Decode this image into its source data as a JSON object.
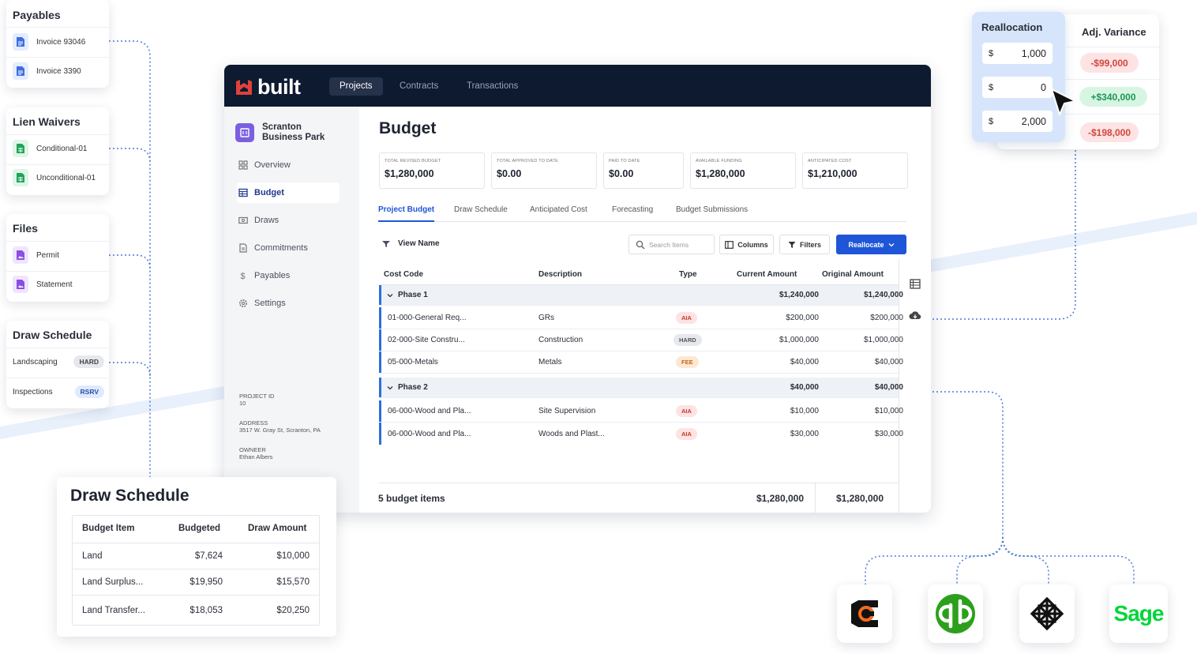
{
  "left_cards": {
    "payables": {
      "title": "Payables",
      "items": [
        "Invoice 93046",
        "Invoice 3390"
      ]
    },
    "lien_waivers": {
      "title": "Lien Waivers",
      "items": [
        "Conditional-01",
        "Unconditional-01"
      ]
    },
    "files": {
      "title": "Files",
      "items": [
        "Permit",
        "Statement"
      ]
    },
    "draw_schedule": {
      "title": "Draw Schedule",
      "items": [
        {
          "label": "Landscaping",
          "badge": "HARD"
        },
        {
          "label": "Inspections",
          "badge": "RSRV"
        }
      ]
    }
  },
  "app": {
    "brand": "built",
    "nav": [
      "Projects",
      "Contracts",
      "Transactions"
    ],
    "project": {
      "name_line1": "Scranton",
      "name_line2": "Business Park"
    },
    "sidebar": [
      "Overview",
      "Budget",
      "Draws",
      "Commitments",
      "Payables",
      "Settings"
    ],
    "meta": {
      "project_id_label": "PROJECT ID",
      "project_id": "10",
      "address_label": "ADDRESS",
      "address": "3517 W. Gray St, Scranton, PA",
      "owner_label": "OWNEER",
      "owner": "Ethan Albers"
    },
    "page_title": "Budget",
    "stats": [
      {
        "label": "TOTAL REVISED BUDGET",
        "value": "$1,280,000"
      },
      {
        "label": "TOTAL APPROVED TO DATE",
        "value": "$0.00"
      },
      {
        "label": "PAID TO DATE",
        "value": "$0.00"
      },
      {
        "label": "AVAILABLE FUNDING",
        "value": "$1,280,000"
      },
      {
        "label": "ANTICIPATED COST",
        "value": "$1,210,000"
      }
    ],
    "tabs": [
      "Project Budget",
      "Draw Schedule",
      "Anticipated Cost",
      "Forecasting",
      "Budget Submissions"
    ],
    "toolbar": {
      "view_name": "View Name",
      "search_placeholder": "Search Items",
      "columns": "Columns",
      "filters": "Filters",
      "reallocate": "Reallocate"
    },
    "columns": [
      "Cost Code",
      "Description",
      "Type",
      "Current Amount",
      "Original Amount"
    ],
    "phase1": {
      "name": "Phase 1",
      "current": "$1,240,000",
      "original": "$1,240,000"
    },
    "phase1_rows": [
      {
        "code": "01-000-General Req...",
        "desc": "GRs",
        "type": "AIA",
        "current": "$200,000",
        "original": "$200,000"
      },
      {
        "code": "02-000-Site Constru...",
        "desc": "Construction",
        "type": "HARD",
        "current": "$1,000,000",
        "original": "$1,000,000"
      },
      {
        "code": "05-000-Metals",
        "desc": "Metals",
        "type": "FEE",
        "current": "$40,000",
        "original": "$40,000"
      }
    ],
    "phase2": {
      "name": "Phase 2",
      "current": "$40,000",
      "original": "$40,000"
    },
    "phase2_rows": [
      {
        "code": "06-000-Wood and Pla...",
        "desc": "Site Supervision",
        "type": "AIA",
        "current": "$10,000",
        "original": "$10,000"
      },
      {
        "code": "06-000-Wood and Pla...",
        "desc": "Woods and Plast...",
        "type": "AIA",
        "current": "$30,000",
        "original": "$30,000"
      }
    ],
    "footer": {
      "count": "5 budget items",
      "current": "$1,280,000",
      "original": "$1,280,000"
    }
  },
  "reallocation": {
    "title": "Reallocation",
    "currency": "$",
    "values": [
      "1,000",
      "0",
      "2,000"
    ]
  },
  "adj_variance": {
    "title": "Adj. Variance",
    "values": [
      "-$99,000",
      "+$340,000",
      "-$198,000"
    ]
  },
  "draw_schedule_card": {
    "title": "Draw Schedule",
    "headers": [
      "Budget Item",
      "Budgeted",
      "Draw Amount"
    ],
    "rows": [
      {
        "item": "Land",
        "budgeted": "$7,624",
        "draw": "$10,000"
      },
      {
        "item": "Land Surplus...",
        "budgeted": "$19,950",
        "draw": "$15,570"
      },
      {
        "item": "Land Transfer...",
        "budgeted": "$18,053",
        "draw": "$20,250"
      }
    ]
  },
  "integrations": {
    "sage_label": "Sage"
  },
  "colors": {
    "navy": "#0d1a30",
    "accent": "#1f56d8",
    "brand_red": "#e0413b",
    "qb_green": "#2ca01c"
  }
}
